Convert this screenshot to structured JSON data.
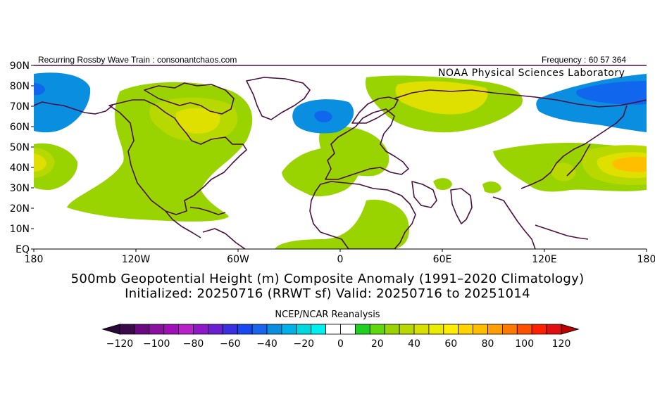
{
  "header": {
    "left_text": "Recurring Rossby Wave Train : consonantchaos.com",
    "right_text": "Frequency : 60 57 364"
  },
  "map": {
    "lab_label": "NOAA Physical Sciences Laboratory",
    "lat_labels": [
      "90N",
      "80N",
      "70N",
      "60N",
      "50N",
      "40N",
      "30N",
      "20N",
      "10N",
      "EQ"
    ],
    "lon_labels": [
      "180",
      "120W",
      "60W",
      "0",
      "60E",
      "120E",
      "180"
    ],
    "colors": {
      "coast": "#4a1042",
      "pos20": "#99d400",
      "pos30": "#b8d900",
      "pos40": "#e0e000",
      "pos60": "#ffbe00",
      "neg40": "#0a8fe0",
      "neg60": "#1166ee"
    }
  },
  "titles": {
    "line1": "500mb Geopotential Height (m) Composite Anomaly (1991–2020 Climatology)",
    "line2": "Initialized: 20250716 (RRWT sf) Valid: 20250716 to 20251014"
  },
  "colorbar": {
    "credit": "NCEP/NCAR Reanalysis",
    "tick_labels": [
      "−120",
      "−100",
      "−80",
      "−60",
      "−40",
      "−20",
      "0",
      "20",
      "40",
      "60",
      "80",
      "100",
      "120"
    ],
    "colors": [
      "#3b0a4a",
      "#6a0a80",
      "#8a10a0",
      "#a010b8",
      "#b820c8",
      "#9018c8",
      "#6a20d0",
      "#3a30e0",
      "#1a48f0",
      "#1866ee",
      "#0a8fe0",
      "#00b0e8",
      "#00d8e0",
      "#00f0f0",
      "#ffffff",
      "#ffffff",
      "#20d020",
      "#60d810",
      "#99d400",
      "#b8d900",
      "#d8e000",
      "#eaec00",
      "#ffee00",
      "#ffd400",
      "#ffbe00",
      "#ffa000",
      "#ff7a00",
      "#ff5000",
      "#ff2000",
      "#e01010"
    ]
  }
}
